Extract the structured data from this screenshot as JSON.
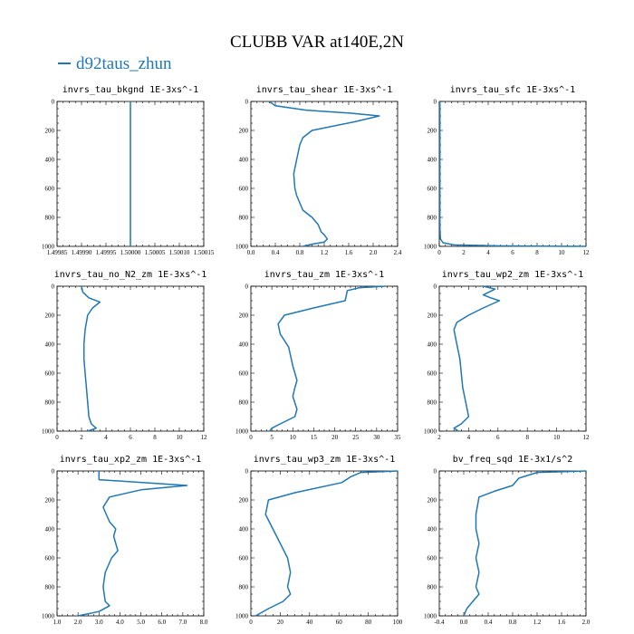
{
  "title": "CLUBB VAR at140E,2N",
  "legend": {
    "label": "d92taus_zhun",
    "color": "#1f77b4"
  },
  "chart_data": [
    {
      "type": "line",
      "title": "invrs_tau_bkgnd  1E-3xs^-1",
      "xlim": [
        1.49985,
        1.50015
      ],
      "xticks": [
        "1.49985",
        "1.49990",
        "1.49995",
        "1.50000",
        "1.50005",
        "1.50010",
        "1.50015"
      ],
      "xtick_values": [
        1.49985,
        1.4999,
        1.49995,
        1.5,
        1.50005,
        1.5001,
        1.50015
      ],
      "ylim": [
        1000,
        0
      ],
      "yticks": [
        0,
        200,
        400,
        600,
        800,
        1000
      ],
      "series": [
        {
          "x": [
            1.5,
            1.5
          ],
          "y": [
            0,
            1000
          ]
        }
      ]
    },
    {
      "type": "line",
      "title": "invrs_tau_shear  1E-3xs^-1",
      "xlim": [
        0,
        2.4
      ],
      "xticks": [
        "0.0",
        "0.4",
        "0.8",
        "1.2",
        "1.6",
        "2.0",
        "2.4"
      ],
      "xtick_values": [
        0,
        0.4,
        0.8,
        1.2,
        1.6,
        2.0,
        2.4
      ],
      "ylim": [
        1000,
        0
      ],
      "yticks": [
        0,
        200,
        400,
        600,
        800,
        1000
      ],
      "series": [
        {
          "x": [
            0.3,
            0.4,
            0.9,
            1.6,
            2.1,
            1.7,
            1.0,
            0.85,
            0.8,
            0.75,
            0.7,
            0.72,
            0.75,
            0.8,
            0.85,
            1.0,
            1.1,
            1.15,
            1.2,
            1.25,
            1.2,
            1.0,
            0.85
          ],
          "y": [
            0,
            30,
            60,
            80,
            100,
            140,
            200,
            250,
            300,
            400,
            500,
            600,
            650,
            700,
            750,
            800,
            850,
            900,
            920,
            950,
            970,
            985,
            1000
          ]
        }
      ]
    },
    {
      "type": "line",
      "title": "invrs_tau_sfc  1E-3xs^-1",
      "xlim": [
        0,
        12
      ],
      "xticks": [
        "0",
        "2",
        "4",
        "6",
        "8",
        "10",
        "12"
      ],
      "xtick_values": [
        0,
        2,
        4,
        6,
        8,
        10,
        12
      ],
      "ylim": [
        1000,
        0
      ],
      "yticks": [
        0,
        200,
        400,
        600,
        800,
        1000
      ],
      "series": [
        {
          "x": [
            0.05,
            0.05,
            0.05,
            0.06,
            0.1,
            0.3,
            1.2,
            5,
            12
          ],
          "y": [
            0,
            400,
            800,
            900,
            950,
            975,
            990,
            997,
            1000
          ]
        }
      ]
    },
    {
      "type": "line",
      "title": "invrs_tau_no_N2_zm  1E-3xs^-1",
      "xlim": [
        0,
        12
      ],
      "xticks": [
        "0",
        "2",
        "4",
        "6",
        "8",
        "10",
        "12"
      ],
      "xtick_values": [
        0,
        2,
        4,
        6,
        8,
        10,
        12
      ],
      "ylim": [
        1000,
        0
      ],
      "yticks": [
        0,
        200,
        400,
        600,
        800,
        1000
      ],
      "series": [
        {
          "x": [
            2,
            2.1,
            2.6,
            3.5,
            2.9,
            2.5,
            2.3,
            2.2,
            2.2,
            2.3,
            2.4,
            2.5,
            2.6,
            2.8,
            3.2,
            2.5
          ],
          "y": [
            0,
            40,
            80,
            110,
            150,
            200,
            300,
            400,
            500,
            600,
            700,
            800,
            900,
            950,
            980,
            1000
          ]
        }
      ]
    },
    {
      "type": "line",
      "title": "invrs_tau_zm  1E-3xs^-1",
      "xlim": [
        0,
        35
      ],
      "xticks": [
        "0",
        "5",
        "10",
        "15",
        "20",
        "25",
        "30",
        "35"
      ],
      "xtick_values": [
        0,
        5,
        10,
        15,
        20,
        25,
        30,
        35
      ],
      "ylim": [
        1000,
        0
      ],
      "yticks": [
        0,
        200,
        400,
        600,
        800,
        1000
      ],
      "series": [
        {
          "x": [
            32,
            26,
            23,
            22.5,
            15,
            8,
            6.5,
            7,
            9,
            10,
            11,
            10.5,
            10,
            11,
            10.5,
            7,
            5,
            4.5
          ],
          "y": [
            0,
            10,
            30,
            100,
            150,
            200,
            260,
            330,
            420,
            550,
            650,
            700,
            760,
            850,
            900,
            950,
            980,
            1000
          ]
        }
      ]
    },
    {
      "type": "line",
      "title": "invrs_tau_wp2_zm  1E-3xs^-1",
      "xlim": [
        2,
        12
      ],
      "xticks": [
        "2",
        "4",
        "6",
        "8",
        "10",
        "12"
      ],
      "xtick_values": [
        2,
        4,
        6,
        8,
        10,
        12
      ],
      "ylim": [
        1000,
        0
      ],
      "yticks": [
        0,
        200,
        400,
        600,
        800,
        1000
      ],
      "series": [
        {
          "x": [
            5,
            5.8,
            5,
            5.5,
            6.1,
            5,
            4,
            3.2,
            3,
            3.2,
            3.4,
            3.5,
            3.6,
            3.8,
            4,
            3.5,
            3,
            3.3
          ],
          "y": [
            0,
            20,
            60,
            80,
            100,
            150,
            200,
            250,
            300,
            400,
            500,
            600,
            700,
            800,
            900,
            950,
            980,
            1000
          ]
        }
      ]
    },
    {
      "type": "line",
      "title": "invrs_tau_xp2_zm  1E-3xs^-1",
      "xlim": [
        1.0,
        8.0
      ],
      "xticks": [
        "1.0",
        "2.0",
        "3.0",
        "4.0",
        "5.0",
        "6.0",
        "7.0",
        "8.0"
      ],
      "xtick_values": [
        1,
        2,
        3,
        4,
        5,
        6,
        7,
        8
      ],
      "ylim": [
        1000,
        0
      ],
      "yticks": [
        0,
        200,
        400,
        600,
        800,
        1000
      ],
      "series": [
        {
          "x": [
            3,
            3,
            7.2,
            5,
            3.5,
            3.2,
            3.5,
            3.8,
            3.7,
            3.9,
            3.6,
            3.3,
            3.2,
            3.3,
            3.5,
            3,
            2
          ],
          "y": [
            0,
            60,
            100,
            130,
            180,
            250,
            350,
            400,
            450,
            550,
            600,
            700,
            800,
            900,
            930,
            970,
            1000
          ]
        }
      ]
    },
    {
      "type": "line",
      "title": "invrs_tau_wp3_zm  1E-3xs^-1",
      "xlim": [
        0,
        100
      ],
      "xticks": [
        "0",
        "20",
        "40",
        "60",
        "80",
        "100"
      ],
      "xtick_values": [
        0,
        20,
        40,
        60,
        80,
        100
      ],
      "ylim": [
        1000,
        0
      ],
      "yticks": [
        0,
        200,
        400,
        600,
        800,
        1000
      ],
      "series": [
        {
          "x": [
            100,
            75,
            68,
            62,
            30,
            12,
            10,
            15,
            20,
            25,
            27,
            25,
            27,
            22,
            12,
            5,
            3
          ],
          "y": [
            0,
            10,
            40,
            80,
            150,
            200,
            300,
            400,
            500,
            600,
            700,
            800,
            850,
            900,
            950,
            990,
            1000
          ]
        }
      ]
    },
    {
      "type": "line",
      "title": "bv_freq_sqd  1E-3x1/s^2",
      "xlim": [
        -0.4,
        2.0
      ],
      "xticks": [
        "-0.4",
        "0.0",
        "0.4",
        "0.8",
        "1.2",
        "1.6",
        "2.0"
      ],
      "xtick_values": [
        -0.4,
        0,
        0.4,
        0.8,
        1.2,
        1.6,
        2.0
      ],
      "ylim": [
        1000,
        0
      ],
      "yticks": [
        0,
        200,
        400,
        600,
        800,
        1000
      ],
      "series": [
        {
          "x": [
            2,
            1.2,
            0.9,
            0.8,
            0.5,
            0.25,
            0.2,
            0.2,
            0.25,
            0.2,
            0.25,
            0.2,
            0.25,
            0.15,
            0.05,
            0
          ],
          "y": [
            0,
            10,
            50,
            100,
            140,
            180,
            300,
            400,
            500,
            600,
            700,
            800,
            850,
            900,
            950,
            1000
          ]
        }
      ]
    }
  ]
}
